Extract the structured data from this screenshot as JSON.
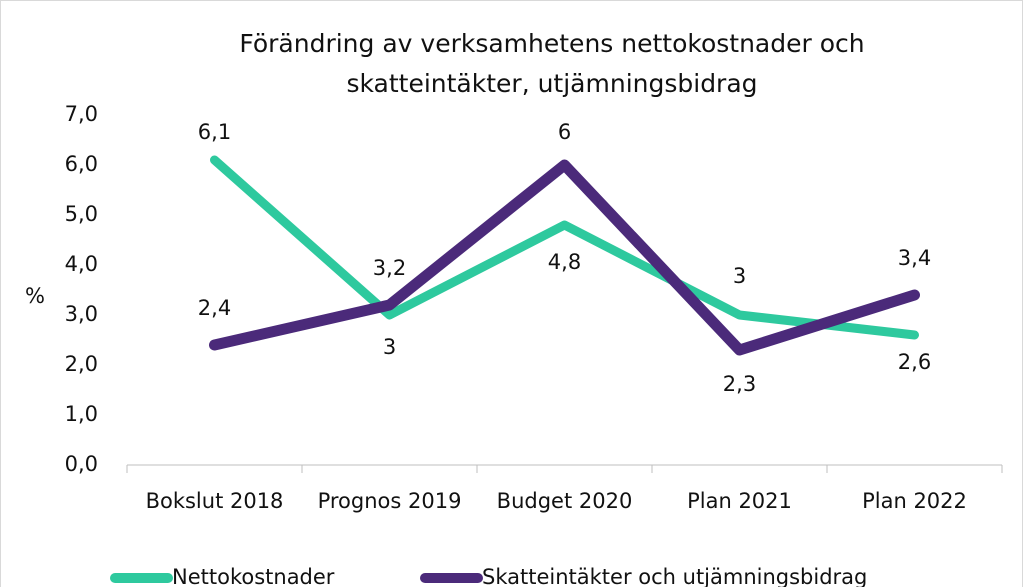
{
  "chart_data": {
    "type": "line",
    "title": [
      "Förändring av verksamhetens nettokostnader och",
      "skatteintäkter, utjämningsbidrag"
    ],
    "y_label": "%",
    "categories": [
      "Bokslut 2018",
      "Prognos 2019",
      "Budget 2020",
      "Plan 2021",
      "Plan 2022"
    ],
    "series": [
      {
        "name": "Nettokostnader",
        "color": "#2ec99e",
        "values": [
          6.1,
          3,
          4.8,
          3,
          2.6
        ],
        "value_labels": [
          "6,1",
          "3",
          "4,8",
          "3",
          "2,6"
        ]
      },
      {
        "name": "Skatteintäkter och utjämningsbidrag",
        "color": "#4b2a7a",
        "values": [
          2.4,
          3.2,
          6,
          2.3,
          3.4
        ],
        "value_labels": [
          "2,4",
          "3,2",
          "6",
          "2,3",
          "3,4"
        ]
      }
    ],
    "ylim": [
      0,
      7
    ],
    "yticks": [
      {
        "value": 0,
        "label": "0,0"
      },
      {
        "value": 1,
        "label": "1,0"
      },
      {
        "value": 2,
        "label": "2,0"
      },
      {
        "value": 3,
        "label": "3,0"
      },
      {
        "value": 4,
        "label": "4,0"
      },
      {
        "value": 5,
        "label": "5,0"
      },
      {
        "value": 6,
        "label": "6,0"
      },
      {
        "value": 7,
        "label": "7,0"
      }
    ],
    "legend": "bottom"
  }
}
